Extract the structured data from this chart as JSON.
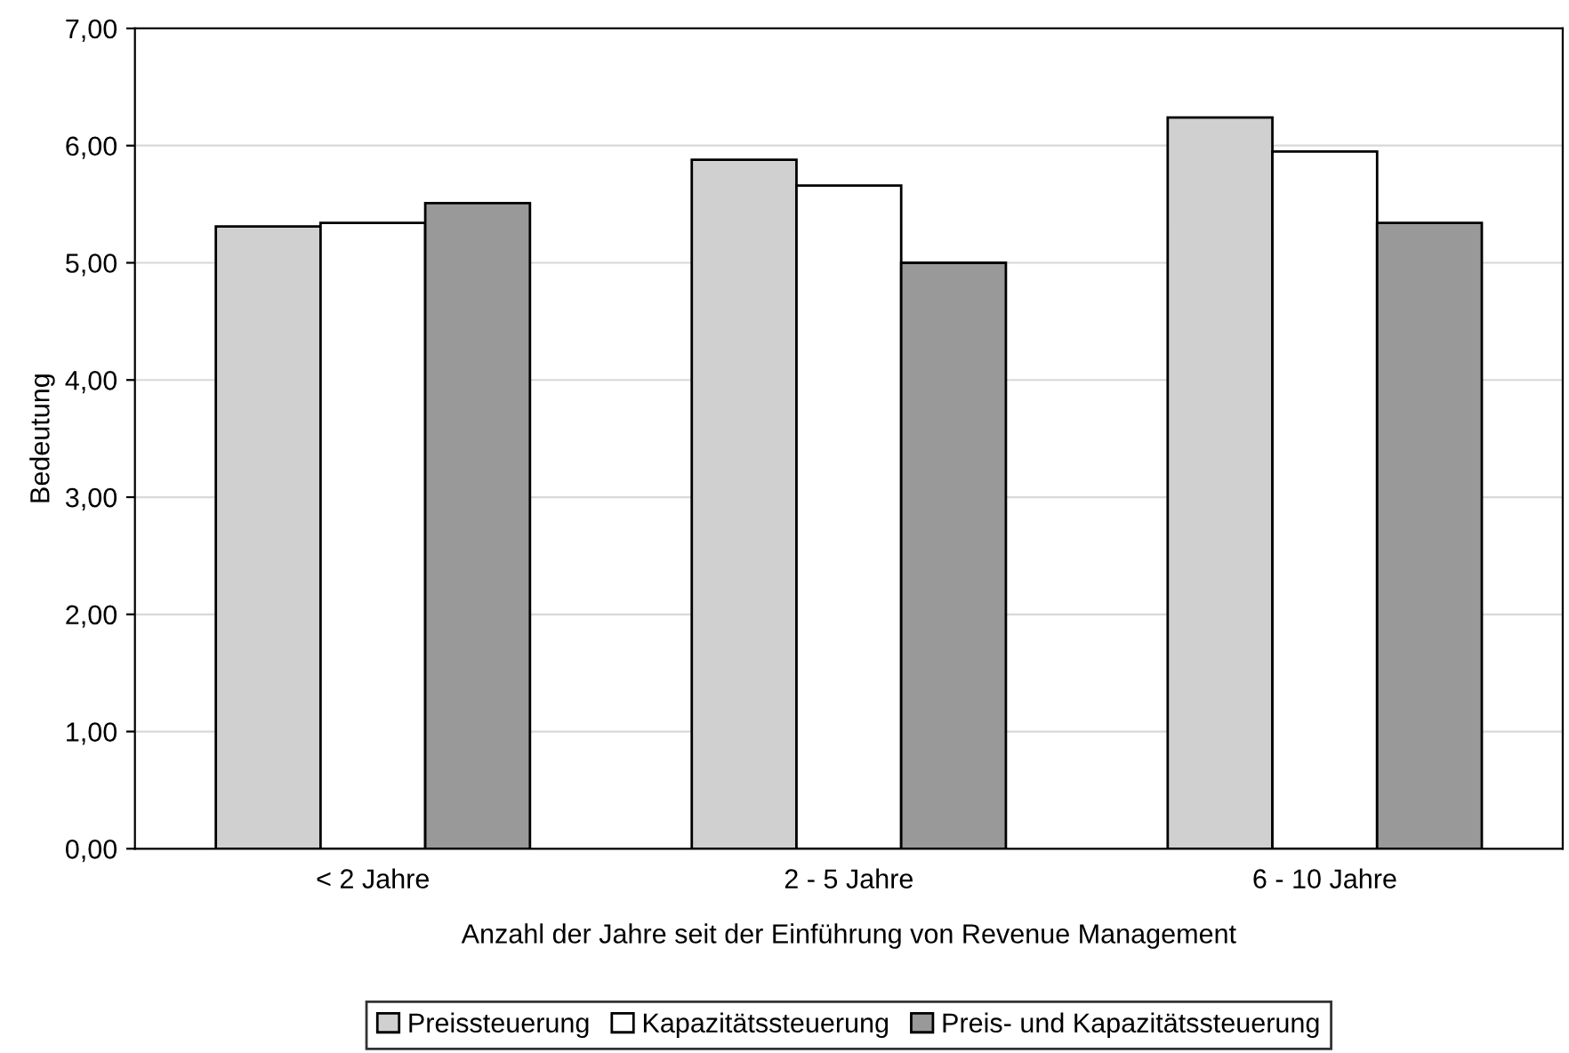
{
  "chart_data": {
    "type": "bar",
    "xlabel": "Anzahl der Jahre seit der Einführung von Revenue Management",
    "ylabel": "Bedeutung",
    "categories": [
      "< 2 Jahre",
      "2 - 5 Jahre",
      "6 - 10 Jahre"
    ],
    "series": [
      {
        "name": "Preissteuerung",
        "color": "#d0d0d0",
        "values": [
          5.31,
          5.88,
          6.24
        ]
      },
      {
        "name": "Kapazitätssteuerung",
        "color": "#ffffff",
        "values": [
          5.34,
          5.66,
          5.95
        ]
      },
      {
        "name": "Preis- und Kapazitätssteuerung",
        "color": "#999999",
        "values": [
          5.51,
          5.0,
          5.34
        ]
      }
    ],
    "ylim": [
      0,
      7
    ],
    "yticks": [
      {
        "value": 0,
        "label": "0,00"
      },
      {
        "value": 1,
        "label": "1,00"
      },
      {
        "value": 2,
        "label": "2,00"
      },
      {
        "value": 3,
        "label": "3,00"
      },
      {
        "value": 4,
        "label": "4,00"
      },
      {
        "value": 5,
        "label": "5,00"
      },
      {
        "value": 6,
        "label": "6,00"
      },
      {
        "value": 7,
        "label": "7,00"
      }
    ],
    "grid": "y",
    "legend": "bottom"
  }
}
